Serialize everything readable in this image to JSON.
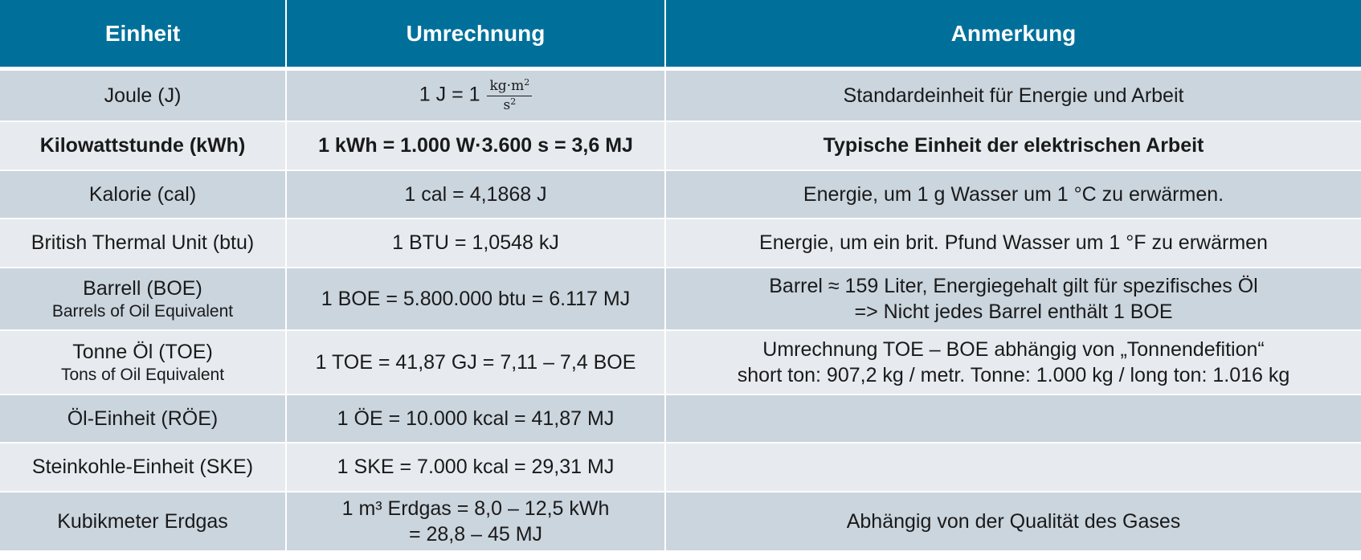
{
  "table": {
    "headers": [
      "Einheit",
      "Umrechnung",
      "Anmerkung"
    ],
    "joule": {
      "unit": "Joule (J)",
      "conversion_lhs": "1 J = 1",
      "fraction_numerator": "kg·m",
      "fraction_numerator_exp": "2",
      "fraction_denominator": "s",
      "fraction_denominator_exp": "2",
      "note": "Standardeinheit für Energie und Arbeit"
    },
    "rows": [
      {
        "unit": "Kilowattstunde (kWh)",
        "unit_sub": "",
        "conversion": [
          "1 kWh = 1.000 W·3.600 s = 3,6 MJ"
        ],
        "note": [
          "Typische Einheit der elektrischen Arbeit"
        ]
      },
      {
        "unit": "Kalorie (cal)",
        "unit_sub": "",
        "conversion": [
          "1 cal = 4,1868 J"
        ],
        "note": [
          "Energie, um 1 g Wasser um 1 °C zu erwärmen."
        ]
      },
      {
        "unit": "British Thermal Unit (btu)",
        "unit_sub": "",
        "conversion": [
          "1 BTU = 1,0548 kJ"
        ],
        "note": [
          "Energie, um ein brit. Pfund Wasser um 1 °F zu erwärmen"
        ]
      },
      {
        "unit": "Barrell (BOE)",
        "unit_sub": "Barrels of Oil Equivalent",
        "conversion": [
          "1 BOE = 5.800.000 btu = 6.117 MJ"
        ],
        "note": [
          "Barrel ≈ 159 Liter, Energiegehalt gilt für spezifisches Öl",
          "=> Nicht jedes Barrel enthält 1 BOE"
        ]
      },
      {
        "unit": "Tonne Öl (TOE)",
        "unit_sub": "Tons of Oil Equivalent",
        "conversion": [
          "1 TOE = 41,87 GJ = 7,11 – 7,4 BOE"
        ],
        "note": [
          "Umrechnung TOE – BOE abhängig von „Tonnendefition“",
          "short ton: 907,2 kg / metr. Tonne: 1.000 kg / long ton: 1.016 kg"
        ]
      },
      {
        "unit": "Öl-Einheit (RÖE)",
        "unit_sub": "",
        "conversion": [
          "1 ÖE = 10.000 kcal = 41,87 MJ"
        ],
        "note": [
          ""
        ]
      },
      {
        "unit": "Steinkohle-Einheit (SKE)",
        "unit_sub": "",
        "conversion": [
          "1 SKE = 7.000 kcal = 29,31 MJ"
        ],
        "note": [
          ""
        ]
      },
      {
        "unit": "Kubikmeter Erdgas",
        "unit_sub": "",
        "conversion": [
          "1 m³ Erdgas = 8,0 – 12,5 kWh",
          "= 28,8 – 45 MJ"
        ],
        "note": [
          "Abhängig von der Qualität des Gases"
        ]
      }
    ]
  },
  "colors": {
    "header_bg": "#00709b",
    "row_dark": "#cbd5de",
    "row_light": "#e7ebef",
    "text": "#1a1a1a"
  }
}
